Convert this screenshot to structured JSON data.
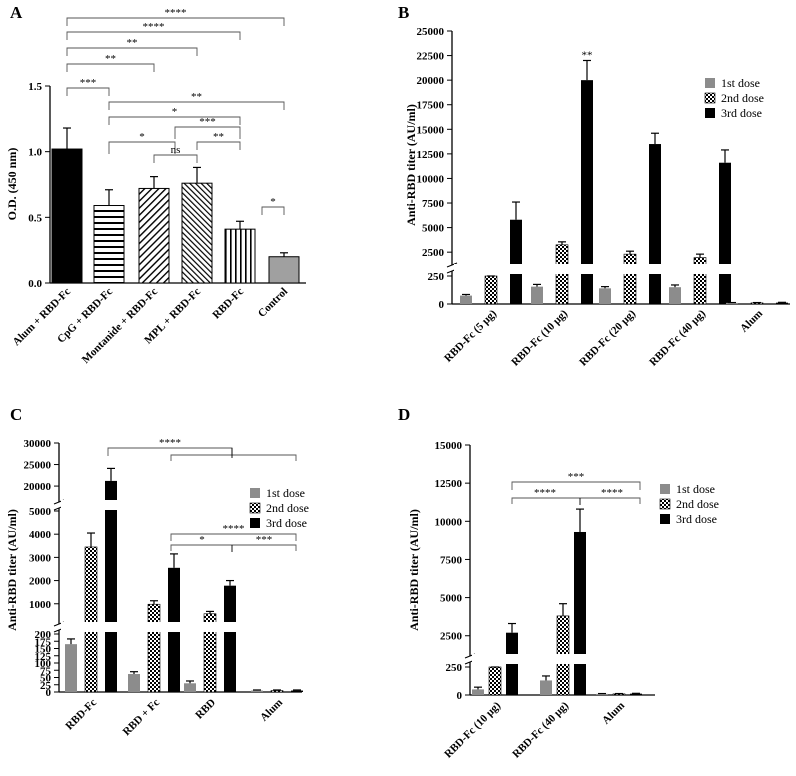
{
  "colors": {
    "dose1": "#8c8c8c",
    "dose3": "#000000",
    "control": "#a0a0a0"
  },
  "chart_data": [
    {
      "panel": "A",
      "type": "bar",
      "ylabel": "O.D. (450 nm)",
      "ylim": [
        0,
        1.5
      ],
      "yticks": [
        "0.0",
        "0.5",
        "1.0",
        "1.5"
      ],
      "categories": [
        "Alum + RBD-Fc",
        "CpG + RBD-Fc",
        "Montanide + RBD-Fc",
        "MPL + RBD-Fc",
        "RBD-Fc",
        "Control"
      ],
      "fills": [
        "solid-black",
        "horizontal-lines",
        "diagonal-right",
        "diagonal-left",
        "vertical-lines",
        "solid-gray"
      ],
      "values": [
        1.02,
        0.59,
        0.72,
        0.76,
        0.41,
        0.2
      ],
      "errors": [
        0.16,
        0.12,
        0.09,
        0.12,
        0.06,
        0.03
      ],
      "significance": [
        {
          "from": 0,
          "to": 1,
          "label": "***"
        },
        {
          "from": 0,
          "to": 2,
          "label": "**"
        },
        {
          "from": 0,
          "to": 3,
          "label": "**"
        },
        {
          "from": 0,
          "to": 4,
          "label": "****"
        },
        {
          "from": 0,
          "to": 5,
          "label": "****"
        },
        {
          "from": 1,
          "to": 5,
          "label": "**"
        },
        {
          "from": 1,
          "to": 4,
          "label": "*"
        },
        {
          "from": 3,
          "to": 5,
          "label": "***"
        },
        {
          "from": 1,
          "to": 3,
          "label": "*"
        },
        {
          "from": 3,
          "to": 4,
          "label": "**"
        },
        {
          "from": 2,
          "to": 3,
          "label": "ns"
        },
        {
          "from": 4,
          "to": 5,
          "label": "*"
        }
      ]
    },
    {
      "panel": "B",
      "type": "bar",
      "ylabel": "Anti-RBD titer (AU/ml)",
      "yticks_lower": [
        "0",
        "250"
      ],
      "yticks_upper": [
        "2500",
        "5000",
        "7500",
        "10000",
        "12500",
        "15000",
        "17500",
        "20000",
        "22500",
        "25000"
      ],
      "axis_break": [
        250,
        1500
      ],
      "categories": [
        "RBD-Fc (5 μg)",
        "RBD-Fc (10 μg)",
        "RBD-Fc (20 μg)",
        "RBD-Fc (40 μg)",
        "Alum"
      ],
      "series": [
        {
          "name": "1st dose",
          "values": [
            75,
            155,
            140,
            150,
            10
          ],
          "errors": [
            10,
            20,
            15,
            20,
            3
          ]
        },
        {
          "name": "2nd dose",
          "values": [
            1000,
            3250,
            2300,
            1950,
            10
          ],
          "errors": [
            200,
            300,
            300,
            350,
            3
          ]
        },
        {
          "name": "3rd dose",
          "values": [
            5800,
            20000,
            13500,
            11600,
            12
          ],
          "errors": [
            1800,
            2000,
            1100,
            1300,
            3
          ]
        }
      ],
      "annotations": [
        {
          "category": 1,
          "label": "**"
        }
      ],
      "legend": "right"
    },
    {
      "panel": "C",
      "type": "bar",
      "ylabel": "Anti-RBD titer (AU/ml)",
      "yticks_lower": [
        "0",
        "25",
        "50",
        "75",
        "100",
        "125",
        "150",
        "175",
        "200"
      ],
      "yticks_mid": [
        "1000",
        "2000",
        "3000",
        "4000",
        "5000"
      ],
      "yticks_upper": [
        "20000",
        "25000",
        "30000"
      ],
      "axis_breaks": [
        [
          200,
          300
        ],
        [
          5000,
          17000
        ]
      ],
      "categories": [
        "RBD-Fc",
        "RBD + Fc",
        "RBD",
        "Alum"
      ],
      "series": [
        {
          "name": "1st dose",
          "values": [
            165,
            62,
            30,
            5
          ],
          "errors": [
            18,
            8,
            8,
            2
          ]
        },
        {
          "name": "2nd dose",
          "values": [
            3450,
            980,
            570,
            5
          ],
          "errors": [
            600,
            150,
            100,
            2
          ]
        },
        {
          "name": "3rd dose",
          "values": [
            21200,
            2550,
            1780,
            5
          ],
          "errors": [
            2900,
            600,
            220,
            2
          ]
        }
      ],
      "significance": [
        {
          "label": "****"
        },
        {
          "label": "****"
        },
        {
          "label": "*"
        },
        {
          "label": "***"
        }
      ],
      "legend": "right"
    },
    {
      "panel": "D",
      "type": "bar",
      "ylabel": "Anti-RBD titer (AU/ml)",
      "yticks_lower": [
        "0",
        "250"
      ],
      "yticks_upper": [
        "2500",
        "5000",
        "7500",
        "10000",
        "12500",
        "15000"
      ],
      "axis_break": [
        250,
        1500
      ],
      "categories": [
        "RBD-Fc (10 μg)",
        "RBD-Fc (40 μg)",
        "Alum"
      ],
      "series": [
        {
          "name": "1st dose",
          "values": [
            50,
            130,
            10
          ],
          "errors": [
            20,
            40,
            3
          ]
        },
        {
          "name": "2nd dose",
          "values": [
            1000,
            3800,
            10
          ],
          "errors": [
            200,
            800,
            3
          ]
        },
        {
          "name": "3rd dose",
          "values": [
            2700,
            9300,
            12
          ],
          "errors": [
            600,
            1500,
            3
          ]
        }
      ],
      "significance": [
        {
          "label": "***"
        },
        {
          "label": "****"
        },
        {
          "label": "****"
        }
      ],
      "legend": "right"
    }
  ]
}
